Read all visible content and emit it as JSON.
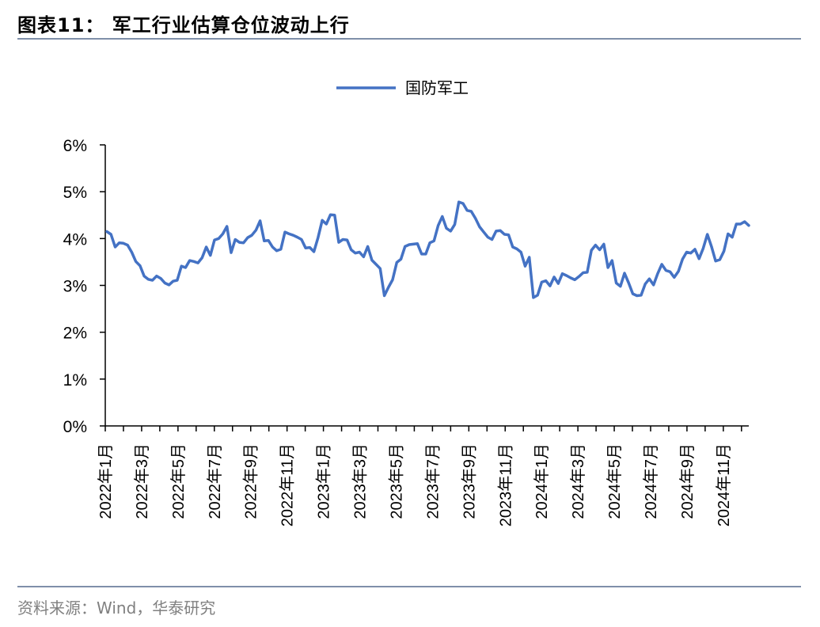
{
  "figure": {
    "title": "图表11：  军工行业估算仓位波动上行",
    "source": "资料来源：Wind，华泰研究"
  },
  "colors": {
    "line": "#4472C4",
    "rule": "#7f8fa9",
    "axis": "#000000",
    "source": "#808080"
  },
  "chart_data": {
    "type": "line",
    "title": "",
    "xlabel": "",
    "ylabel": "",
    "ylim": [
      0,
      6
    ],
    "y_unit": "%",
    "y_ticks": [
      "0%",
      "1%",
      "2%",
      "3%",
      "4%",
      "5%",
      "6%"
    ],
    "x_tick_labels": [
      "2022年1月",
      "2022年3月",
      "2022年5月",
      "2022年7月",
      "2022年9月",
      "2022年11月",
      "2023年1月",
      "2023年3月",
      "2023年5月",
      "2023年7月",
      "2023年9月",
      "2023年11月",
      "2024年1月",
      "2024年3月",
      "2024年5月",
      "2024年7月",
      "2024年9月",
      "2024年11月"
    ],
    "grid": false,
    "legend": "top-center",
    "series": [
      {
        "name": "国防军工",
        "values": [
          4.15,
          4.09,
          3.82,
          3.91,
          3.9,
          3.86,
          3.71,
          3.51,
          3.42,
          3.2,
          3.13,
          3.11,
          3.2,
          3.15,
          3.05,
          3.01,
          3.09,
          3.11,
          3.41,
          3.38,
          3.53,
          3.51,
          3.48,
          3.59,
          3.82,
          3.64,
          3.97,
          4.0,
          4.1,
          4.26,
          3.7,
          3.98,
          3.92,
          3.91,
          4.02,
          4.07,
          4.18,
          4.38,
          3.95,
          3.96,
          3.82,
          3.74,
          3.77,
          4.14,
          4.1,
          4.07,
          4.03,
          3.98,
          3.8,
          3.81,
          3.72,
          4.02,
          4.39,
          4.31,
          4.51,
          4.5,
          3.92,
          3.98,
          3.97,
          3.76,
          3.69,
          3.71,
          3.61,
          3.83,
          3.54,
          3.45,
          3.36,
          2.78,
          2.96,
          3.12,
          3.49,
          3.56,
          3.83,
          3.87,
          3.88,
          3.89,
          3.67,
          3.67,
          3.91,
          3.95,
          4.28,
          4.47,
          4.22,
          4.16,
          4.3,
          4.78,
          4.75,
          4.6,
          4.58,
          4.43,
          4.25,
          4.14,
          4.03,
          3.98,
          4.16,
          4.17,
          4.09,
          4.08,
          3.82,
          3.78,
          3.71,
          3.41,
          3.6,
          2.74,
          2.79,
          3.07,
          3.1,
          2.99,
          3.18,
          3.04,
          3.25,
          3.21,
          3.16,
          3.12,
          3.19,
          3.27,
          3.28,
          3.75,
          3.86,
          3.76,
          3.88,
          3.38,
          3.53,
          3.05,
          2.98,
          3.26,
          3.05,
          2.82,
          2.78,
          2.79,
          3.03,
          3.14,
          3.01,
          3.25,
          3.45,
          3.32,
          3.29,
          3.17,
          3.3,
          3.56,
          3.71,
          3.69,
          3.77,
          3.57,
          3.79,
          4.09,
          3.83,
          3.52,
          3.55,
          3.73,
          4.1,
          4.03,
          4.31,
          4.31,
          4.36,
          4.28
        ]
      }
    ]
  }
}
